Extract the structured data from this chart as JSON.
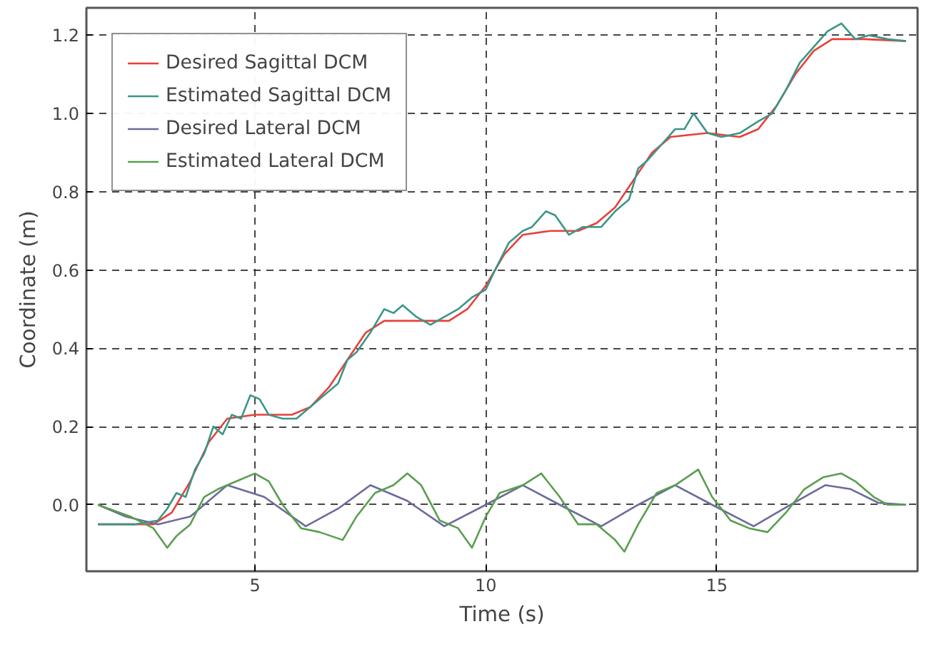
{
  "chart_data": {
    "type": "line",
    "xlabel": "Time (s)",
    "ylabel": "Coordinate (m)",
    "xlim": [
      1.35,
      19.35
    ],
    "ylim": [
      -0.17,
      1.27
    ],
    "xticks": [
      5,
      10,
      15
    ],
    "yticks": [
      {
        "value": 0,
        "label": "0.0"
      },
      0.2,
      0.4,
      0.6,
      0.8,
      {
        "value": 1,
        "label": "1.0"
      },
      1.2
    ],
    "grid": true,
    "legend": "top left",
    "line_style": "solid",
    "series": [
      {
        "name": "Desired Sagittal DCM",
        "color": "#e8403a",
        "x": [
          1.6,
          2.8,
          3.2,
          3.6,
          4.0,
          4.4,
          5.0,
          5.8,
          6.2,
          6.6,
          7.0,
          7.4,
          7.8,
          8.6,
          9.2,
          9.6,
          10.0,
          10.4,
          10.8,
          11.4,
          12.0,
          12.4,
          12.8,
          13.2,
          13.6,
          14.0,
          14.8,
          15.5,
          15.9,
          16.3,
          16.7,
          17.1,
          17.5,
          18.2,
          19.1
        ],
        "values": [
          -0.05,
          -0.05,
          -0.02,
          0.06,
          0.16,
          0.22,
          0.23,
          0.23,
          0.25,
          0.3,
          0.37,
          0.44,
          0.47,
          0.47,
          0.47,
          0.5,
          0.56,
          0.64,
          0.69,
          0.7,
          0.7,
          0.72,
          0.76,
          0.83,
          0.9,
          0.94,
          0.95,
          0.94,
          0.96,
          1.02,
          1.1,
          1.16,
          1.19,
          1.19,
          1.185
        ]
      },
      {
        "name": "Estimated Sagittal DCM",
        "color": "#3a9688",
        "x": [
          1.6,
          2.4,
          2.9,
          3.1,
          3.3,
          3.5,
          3.7,
          3.9,
          4.1,
          4.3,
          4.5,
          4.7,
          4.9,
          5.1,
          5.3,
          5.6,
          5.9,
          6.2,
          6.5,
          6.8,
          7.0,
          7.2,
          7.5,
          7.8,
          8.0,
          8.2,
          8.5,
          8.8,
          9.1,
          9.4,
          9.7,
          10.0,
          10.2,
          10.5,
          10.8,
          11.0,
          11.3,
          11.5,
          11.8,
          12.1,
          12.5,
          12.8,
          13.1,
          13.3,
          13.5,
          13.8,
          14.1,
          14.3,
          14.5,
          14.8,
          15.1,
          15.5,
          15.9,
          16.2,
          16.5,
          16.8,
          17.1,
          17.4,
          17.7,
          18.0,
          18.3,
          18.7,
          19.1
        ],
        "values": [
          -0.05,
          -0.05,
          -0.04,
          -0.01,
          0.03,
          0.02,
          0.09,
          0.13,
          0.2,
          0.18,
          0.23,
          0.22,
          0.28,
          0.27,
          0.23,
          0.22,
          0.22,
          0.25,
          0.28,
          0.31,
          0.37,
          0.39,
          0.44,
          0.5,
          0.49,
          0.51,
          0.48,
          0.46,
          0.48,
          0.5,
          0.53,
          0.55,
          0.6,
          0.67,
          0.7,
          0.71,
          0.75,
          0.74,
          0.69,
          0.71,
          0.71,
          0.75,
          0.78,
          0.86,
          0.88,
          0.92,
          0.96,
          0.96,
          1.0,
          0.95,
          0.94,
          0.95,
          0.98,
          1.0,
          1.06,
          1.13,
          1.17,
          1.21,
          1.23,
          1.19,
          1.2,
          1.19,
          1.185
        ]
      },
      {
        "name": "Desired Lateral DCM",
        "color": "#6b6b9c",
        "x": [
          1.6,
          2.2,
          2.9,
          3.6,
          4.4,
          5.2,
          6.1,
          6.8,
          7.5,
          8.3,
          9.1,
          10.0,
          10.8,
          11.6,
          12.5,
          13.3,
          14.1,
          14.9,
          15.8,
          16.6,
          17.35,
          17.9,
          18.5,
          19.1
        ],
        "values": [
          0.0,
          -0.03,
          -0.05,
          -0.03,
          0.05,
          0.02,
          -0.055,
          -0.01,
          0.05,
          0.01,
          -0.055,
          0.0,
          0.05,
          0.0,
          -0.055,
          0.0,
          0.05,
          0.0,
          -0.055,
          0.0,
          0.05,
          0.04,
          0.005,
          0.0
        ]
      },
      {
        "name": "Estimated Lateral DCM",
        "color": "#5a9e50",
        "x": [
          1.6,
          2.3,
          2.8,
          3.1,
          3.3,
          3.6,
          3.9,
          4.2,
          4.6,
          5.0,
          5.3,
          5.6,
          6.0,
          6.4,
          6.9,
          7.2,
          7.6,
          8.0,
          8.3,
          8.6,
          9.0,
          9.4,
          9.7,
          10.0,
          10.3,
          10.8,
          11.2,
          11.6,
          12.0,
          12.4,
          12.8,
          13.0,
          13.3,
          13.7,
          14.1,
          14.6,
          14.9,
          15.3,
          15.7,
          16.1,
          16.5,
          16.9,
          17.3,
          17.7,
          18.0,
          18.4,
          18.7,
          19.1
        ],
        "values": [
          0.0,
          -0.03,
          -0.06,
          -0.11,
          -0.08,
          -0.05,
          0.02,
          0.04,
          0.06,
          0.08,
          0.06,
          0.0,
          -0.06,
          -0.07,
          -0.09,
          -0.03,
          0.03,
          0.05,
          0.08,
          0.05,
          -0.04,
          -0.06,
          -0.11,
          -0.03,
          0.03,
          0.05,
          0.08,
          0.02,
          -0.05,
          -0.05,
          -0.09,
          -0.12,
          -0.05,
          0.03,
          0.05,
          0.09,
          0.02,
          -0.04,
          -0.06,
          -0.07,
          -0.02,
          0.04,
          0.07,
          0.08,
          0.06,
          0.02,
          0.0,
          0.0
        ]
      }
    ]
  }
}
